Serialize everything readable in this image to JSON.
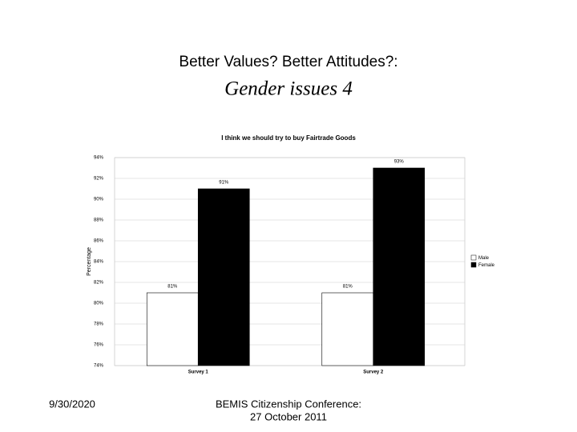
{
  "slide": {
    "title": "Better Values? Better Attitudes?:",
    "subtitle": "Gender issues 4",
    "date": "9/30/2020",
    "footer": [
      "BEMIS Citizenship Conference:",
      "27 October 2011"
    ]
  },
  "chart_data": {
    "type": "bar",
    "title": "I think we should try to buy Fairtrade Goods",
    "y_label": "Percentage",
    "categories": [
      "Survey 1",
      "Survey 2"
    ],
    "series": [
      {
        "name": "Male",
        "color": "#ffffff",
        "values": [
          81,
          81
        ],
        "value_labels": [
          "81%",
          "81%"
        ]
      },
      {
        "name": "Female",
        "color": "#000000",
        "values": [
          91,
          93
        ],
        "value_labels": [
          "91%",
          "93%"
        ]
      }
    ],
    "ylim": [
      74,
      94
    ],
    "yticks": [
      {
        "value": 74,
        "label": "74%"
      },
      {
        "value": 76,
        "label": "76%"
      },
      {
        "value": 78,
        "label": "78%"
      },
      {
        "value": 80,
        "label": "80%"
      },
      {
        "value": 82,
        "label": "82%"
      },
      {
        "value": 84,
        "label": "84%"
      },
      {
        "value": 86,
        "label": "86%"
      },
      {
        "value": 88,
        "label": "88%"
      },
      {
        "value": 90,
        "label": "90%"
      },
      {
        "value": 92,
        "label": "92%"
      },
      {
        "value": 94,
        "label": "94%"
      }
    ],
    "grid": true,
    "legend": "right"
  }
}
